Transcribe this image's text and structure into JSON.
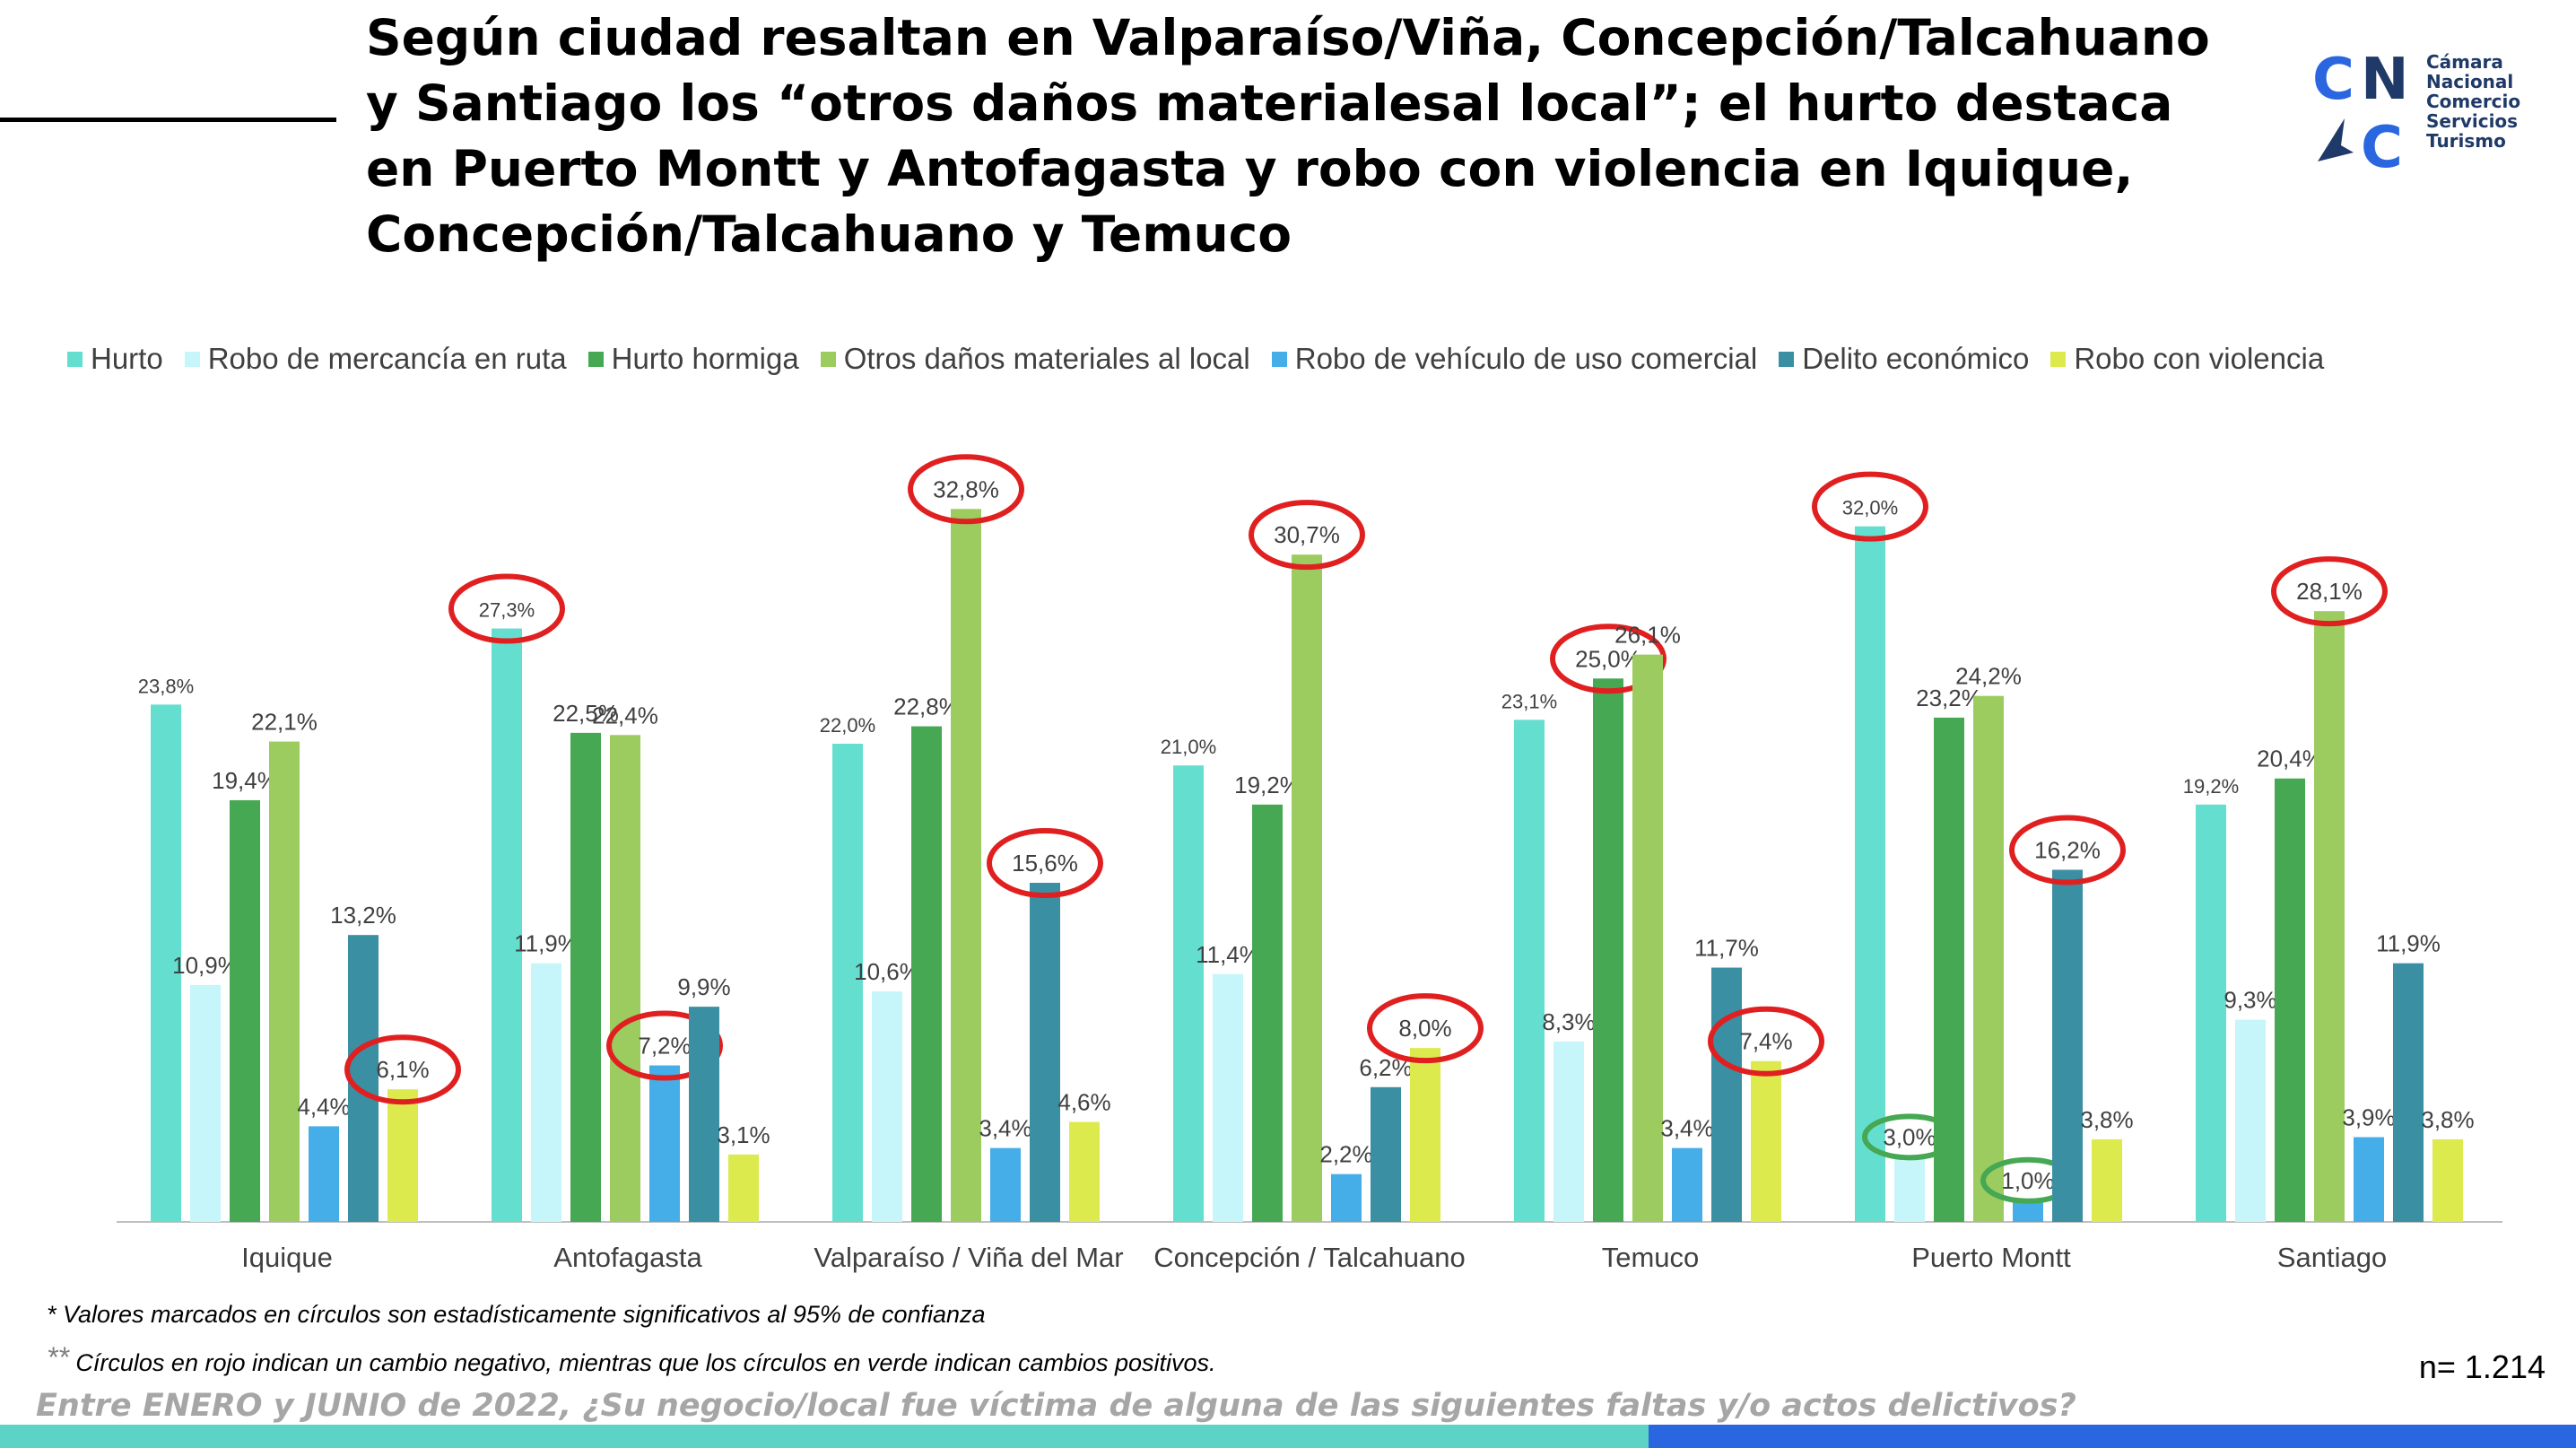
{
  "title": "Según ciudad resaltan en Valparaíso/Viña, Concepción/Talcahuano y Santiago los “otros daños materialesal local”; el hurto destaca en Puerto Montt y Antofagasta y robo con violencia en Iquique, Concepción/Talcahuano y Temuco",
  "logo": {
    "letters": [
      "C",
      "N",
      "C"
    ],
    "lines": [
      "Cámara",
      "Nacional",
      "Comercio",
      "Servicios",
      "Turismo"
    ],
    "color_c": "#2a66e0",
    "color_n": "#1f3a68"
  },
  "chart_data": {
    "type": "bar",
    "categories": [
      "Iquique",
      "Antofagasta",
      "Valparaíso / Viña del Mar",
      "Concepción / Talcahuano",
      "Temuco",
      "Puerto Montt",
      "Santiago"
    ],
    "ylim": [
      0,
      35
    ],
    "grid": false,
    "legend_position": "top",
    "series": [
      {
        "name": "Hurto",
        "color": "#64dfcf",
        "values": [
          23.8,
          27.3,
          22.0,
          21.0,
          23.1,
          32.0,
          19.2
        ],
        "labels": [
          "23,8%",
          "27,3%",
          "22,0%",
          "21,0%",
          "23,1%",
          "32,0%",
          "19,2%"
        ]
      },
      {
        "name": "Robo de mercancía en ruta",
        "color": "#c6f5fa",
        "values": [
          10.9,
          11.9,
          10.6,
          11.4,
          8.3,
          3.0,
          9.3
        ],
        "labels": [
          "10,9%",
          "11,9%",
          "10,6%",
          "11,4%",
          "8,3%",
          "3,0%",
          "9,3%"
        ]
      },
      {
        "name": "Hurto hormiga",
        "color": "#46a852",
        "values": [
          19.4,
          22.5,
          22.8,
          19.2,
          25.0,
          23.2,
          20.4
        ],
        "labels": [
          "19,4%",
          "22,5%",
          "22,8%",
          "19,2%",
          "25,0%",
          "23,2%",
          "20,4%"
        ]
      },
      {
        "name": "Otros daños materiales al local",
        "color": "#9ccc5f",
        "values": [
          22.1,
          22.4,
          32.8,
          30.7,
          26.1,
          24.2,
          28.1
        ],
        "labels": [
          "22,1%",
          "22,4%",
          "32,8%",
          "30,7%",
          "26,1%",
          "24,2%",
          "28,1%"
        ]
      },
      {
        "name": "Robo de vehículo de uso comercial",
        "color": "#45aee8",
        "values": [
          4.4,
          7.2,
          3.4,
          2.2,
          3.4,
          1.0,
          3.9
        ],
        "labels": [
          "4,4%",
          "7,2%",
          "3,4%",
          "2,2%",
          "3,4%",
          "1,0%",
          "3,9%"
        ]
      },
      {
        "name": "Delito económico",
        "color": "#3a8fa3",
        "values": [
          13.2,
          9.9,
          15.6,
          6.2,
          11.7,
          16.2,
          11.9
        ],
        "labels": [
          "13,2%",
          "9,9%",
          "15,6%",
          "6,2%",
          "11,7%",
          "16,2%",
          "11,9%"
        ]
      },
      {
        "name": "Robo con violencia",
        "color": "#dcea4e",
        "values": [
          6.1,
          3.1,
          4.6,
          8.0,
          7.4,
          3.8,
          3.8
        ],
        "labels": [
          "6,1%",
          "3,1%",
          "4,6%",
          "8,0%",
          "7,4%",
          "3,8%",
          "3,8%"
        ]
      }
    ],
    "highlights": [
      {
        "category": 0,
        "series": 6,
        "color": "red"
      },
      {
        "category": 1,
        "series": 0,
        "color": "red"
      },
      {
        "category": 1,
        "series": 4,
        "color": "red"
      },
      {
        "category": 2,
        "series": 3,
        "color": "red"
      },
      {
        "category": 2,
        "series": 5,
        "color": "red"
      },
      {
        "category": 3,
        "series": 3,
        "color": "red"
      },
      {
        "category": 3,
        "series": 6,
        "color": "red"
      },
      {
        "category": 4,
        "series": 2,
        "color": "red"
      },
      {
        "category": 4,
        "series": 6,
        "color": "red"
      },
      {
        "category": 5,
        "series": 0,
        "color": "red"
      },
      {
        "category": 5,
        "series": 1,
        "color": "green"
      },
      {
        "category": 5,
        "series": 4,
        "color": "green"
      },
      {
        "category": 5,
        "series": 5,
        "color": "red"
      },
      {
        "category": 6,
        "series": 3,
        "color": "red"
      }
    ]
  },
  "notes": {
    "note1": "* Valores marcados en círculos son estadísticamente significativos al 95% de confianza",
    "note2_prefix": "**",
    "note2": " Círculos en rojo indican un cambio negativo, mientras que los círculos en verde indican cambios positivos."
  },
  "sample": "n= 1.214",
  "question": "Entre ENERO y JUNIO de 2022, ¿Su negocio/local fue víctima de alguna de las siguientes faltas y/o  actos delictivos?",
  "colors": {
    "highlight_red": "#e02020",
    "highlight_green": "#46a852",
    "bar_left": "#5cd3c4",
    "bar_right": "#2a66e0"
  }
}
